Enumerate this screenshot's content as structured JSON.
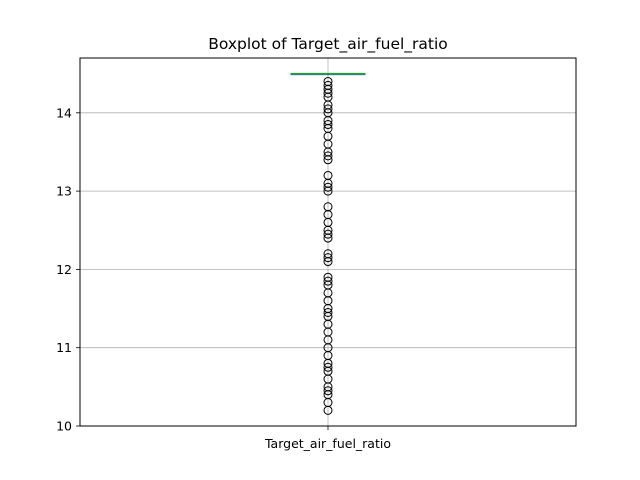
{
  "chart_data": {
    "type": "box",
    "title": "Boxplot of Target_air_fuel_ratio",
    "categories": [
      "Target_air_fuel_ratio"
    ],
    "ylim": [
      10.0,
      14.7
    ],
    "yticks": [
      10,
      11,
      12,
      13,
      14
    ],
    "grid": true,
    "series": [
      {
        "box": {
          "q1": 14.5,
          "median": 14.5,
          "q3": 14.5,
          "whisker_low": 14.5,
          "whisker_high": 14.5
        },
        "outliers": [
          14.4,
          14.35,
          14.3,
          14.25,
          14.2,
          14.1,
          14.05,
          14.0,
          13.9,
          13.85,
          13.8,
          13.7,
          13.6,
          13.5,
          13.45,
          13.4,
          13.2,
          13.1,
          13.05,
          13.0,
          12.8,
          12.7,
          12.6,
          12.5,
          12.45,
          12.4,
          12.2,
          12.15,
          12.1,
          11.9,
          11.85,
          11.8,
          11.7,
          11.6,
          11.5,
          11.45,
          11.4,
          11.3,
          11.2,
          11.1,
          11.0,
          10.9,
          10.8,
          10.75,
          10.7,
          10.6,
          10.5,
          10.45,
          10.4,
          10.3,
          10.2
        ]
      }
    ],
    "colors": {
      "median": "#2ca02c",
      "box": "#1f77b4",
      "outlier": "#000000",
      "grid": "#b0b0b0"
    }
  }
}
